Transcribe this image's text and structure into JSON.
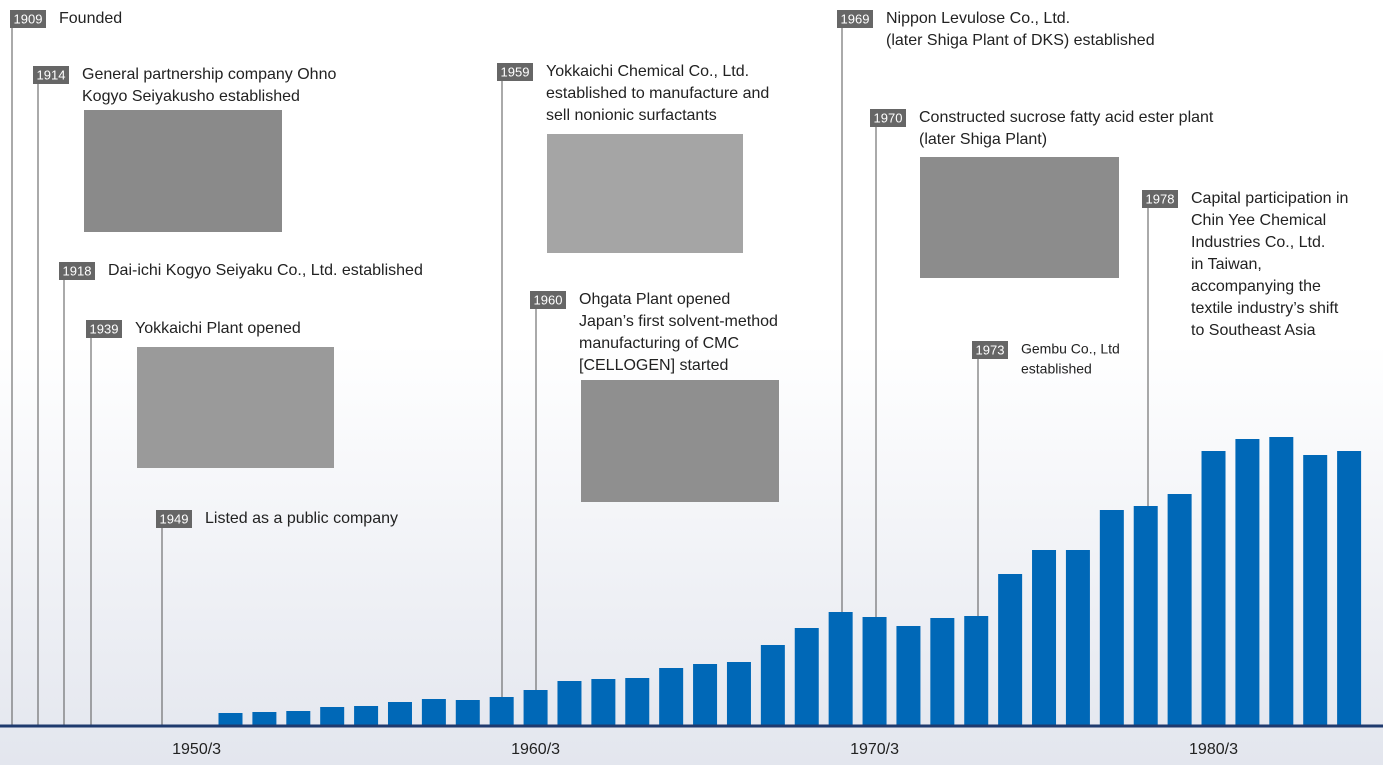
{
  "chart_data": {
    "type": "bar",
    "color": "#0068b7",
    "x": [
      1951,
      1952,
      1953,
      1954,
      1955,
      1956,
      1957,
      1958,
      1959,
      1960,
      1961,
      1962,
      1963,
      1964,
      1965,
      1966,
      1967,
      1968,
      1969,
      1970,
      1971,
      1972,
      1973,
      1974,
      1975,
      1976,
      1977,
      1978,
      1979,
      1980,
      1981,
      1982,
      1983,
      1984
    ],
    "values": [
      12,
      13,
      14,
      18,
      19,
      23,
      26,
      25,
      28,
      35,
      44,
      46,
      47,
      57,
      61,
      63,
      80,
      97,
      113,
      108,
      99,
      107,
      109,
      151,
      175,
      175,
      215,
      219,
      231,
      274,
      286,
      288,
      270,
      274
    ],
    "xlim": [
      1944.2,
      1985.0
    ],
    "ylim": [
      0,
      725
    ],
    "xticks": [
      {
        "value": 1950,
        "label": "1950/3"
      },
      {
        "value": 1960,
        "label": "1960/3"
      },
      {
        "value": 1970,
        "label": "1970/3"
      },
      {
        "value": 1980,
        "label": "1980/3"
      }
    ],
    "events": [
      {
        "year": "1909",
        "lines": [
          "Founded"
        ]
      },
      {
        "year": "1914",
        "lines": [
          "General partnership company Ohno",
          "Kogyo Seiyakusho established"
        ]
      },
      {
        "year": "1918",
        "lines": [
          "Dai-ichi Kogyo Seiyaku Co., Ltd. established"
        ]
      },
      {
        "year": "1939",
        "lines": [
          "Yokkaichi Plant opened"
        ]
      },
      {
        "year": "1949",
        "lines": [
          "Listed as a public company"
        ]
      },
      {
        "year": "1959",
        "lines": [
          "Yokkaichi Chemical Co., Ltd.",
          "established to manufacture and",
          "sell nonionic surfactants"
        ]
      },
      {
        "year": "1960",
        "lines": [
          "Ohgata Plant opened",
          "Japan’s first solvent-method",
          "manufacturing of CMC",
          "[CELLOGEN] started"
        ]
      },
      {
        "year": "1969",
        "lines": [
          "Nippon Levulose Co., Ltd.",
          "(later Shiga Plant of DKS) established"
        ]
      },
      {
        "year": "1970",
        "lines": [
          "Constructed sucrose fatty acid ester plant",
          "(later Shiga Plant)"
        ]
      },
      {
        "year": "1973",
        "lines": [
          "Gembu Co., Ltd",
          "established"
        ]
      },
      {
        "year": "1978",
        "lines": [
          "Capital participation in",
          "Chin Yee Chemical",
          "Industries Co., Ltd.",
          "in Taiwan,",
          "accompanying the",
          "textile industry’s shift",
          "to Southeast Asia"
        ]
      }
    ]
  }
}
